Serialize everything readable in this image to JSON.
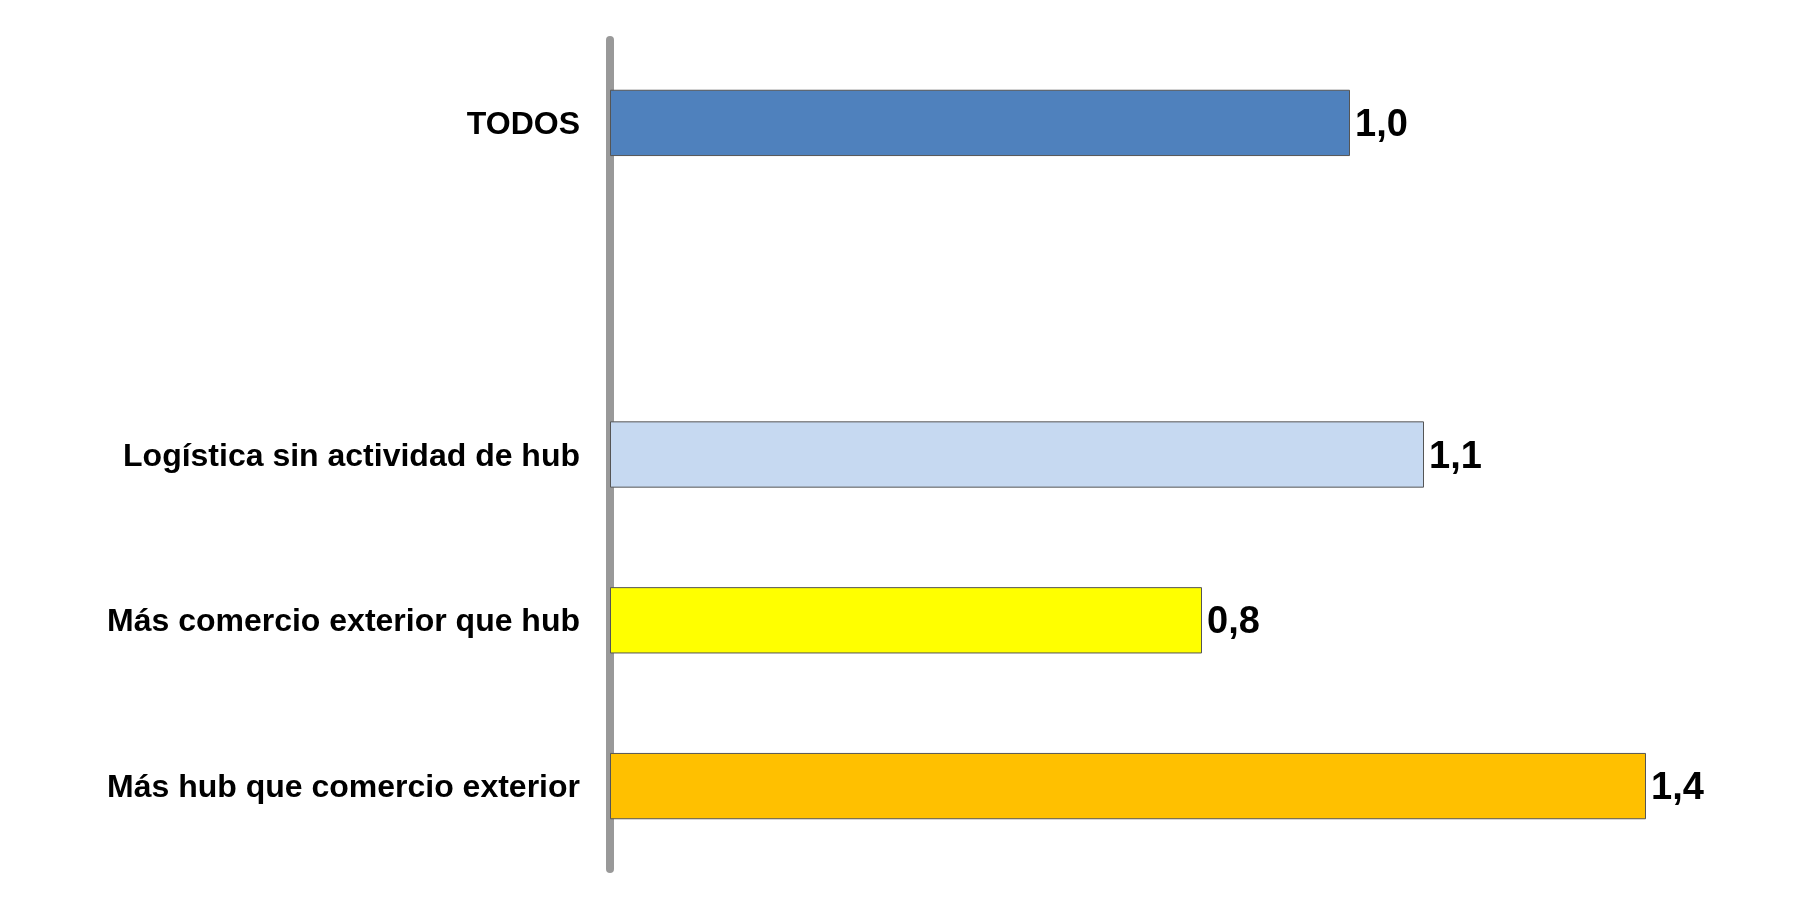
{
  "chart_data": {
    "type": "bar",
    "orientation": "horizontal",
    "categories": [
      "TODOS",
      null,
      "Logística sin actividad de hub",
      "Más comercio exterior que hub",
      "Más hub que comercio exterior"
    ],
    "values": [
      1.0,
      null,
      1.1,
      0.8,
      1.4
    ],
    "value_labels": [
      "1,0",
      null,
      "1,1",
      "0,8",
      "1,4"
    ],
    "colors": [
      "#4f81bd",
      null,
      "#c6d9f1",
      "#ffff00",
      "#ffc000"
    ]
  }
}
